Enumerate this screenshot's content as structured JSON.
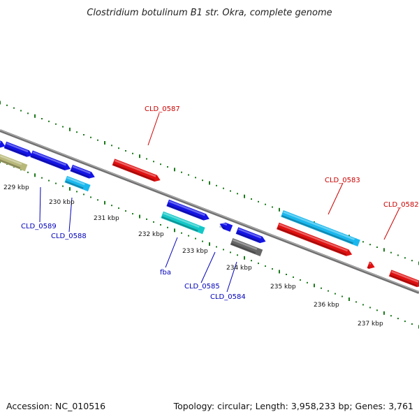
{
  "title": "Clostridium botulinum B1 str. Okra, complete genome",
  "footer": {
    "accession": "Accession: NC_010516",
    "summary": "Topology: circular; Length: 3,958,233 bp; Genes: 3,761"
  },
  "colors": {
    "backbone": "#8a8a8a",
    "tick": "#1a7a1a",
    "red": "#e01010",
    "blue": "#1414e6",
    "lightblue": "#1ab8ee",
    "cyan": "#14c8c8",
    "gray": "#666666",
    "olive": "#b8b87a",
    "label_red": "#cc0000",
    "label_blue": "#0000bb"
  },
  "kbp_labels": [
    "229 kbp",
    "230 kbp",
    "231 kbp",
    "232 kbp",
    "233 kbp",
    "234 kbp",
    "235 kbp",
    "236 kbp",
    "237 kbp"
  ],
  "gene_labels": {
    "CLD_0587": "CLD_0587",
    "CLD_0583": "CLD_0583",
    "CLD_0582": "CLD_0582",
    "CLD_0589": "CLD_0589",
    "CLD_0588": "CLD_0588",
    "fba": "fba",
    "CLD_0585": "CLD_0585",
    "CLD_0584": "CLD_0584"
  }
}
